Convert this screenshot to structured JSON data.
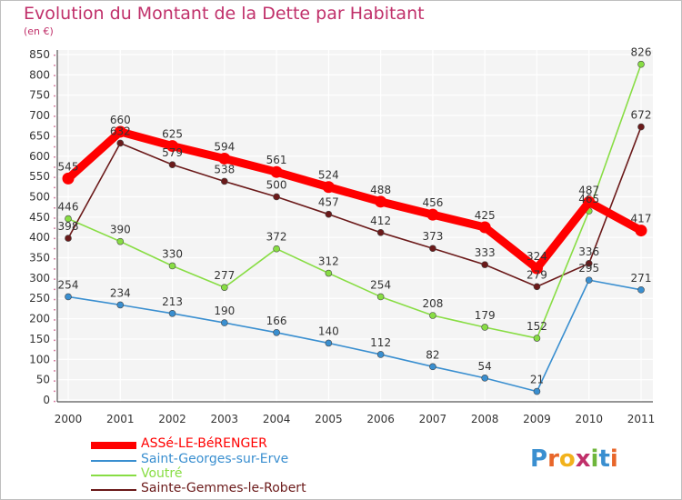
{
  "chart_data": {
    "type": "line",
    "title": "Evolution du Montant de la Dette par Habitant",
    "subtitle": "(en €)",
    "xlabel": "",
    "ylabel": "",
    "ylim": [
      0,
      850
    ],
    "yticks": [
      "0",
      "50",
      "100",
      "150",
      "200",
      "250",
      "300",
      "350",
      "400",
      "450",
      "500",
      "550",
      "600",
      "650",
      "700",
      "750",
      "800",
      "850"
    ],
    "x": [
      "2000",
      "2001",
      "2002",
      "2003",
      "2004",
      "2005",
      "2006",
      "2007",
      "2008",
      "2009",
      "2010",
      "2011"
    ],
    "grid": true,
    "legend_position": "bottom-left",
    "series": [
      {
        "name": "ASSé-LE-BéRENGER",
        "color": "#ff0000",
        "values": [
          545,
          660,
          625,
          594,
          561,
          524,
          488,
          456,
          425,
          324,
          487,
          417
        ],
        "labels": [
          "545",
          "660",
          "625",
          "594",
          "561",
          "524",
          "488",
          "456",
          "425",
          "324",
          "487",
          "417"
        ]
      },
      {
        "name": "Saint-Georges-sur-Erve",
        "color": "#3a8fd0",
        "values": [
          254,
          234,
          213,
          190,
          166,
          140,
          112,
          82,
          54,
          21,
          295,
          271
        ],
        "labels": [
          "254",
          "234",
          "213",
          "190",
          "166",
          "140",
          "112",
          "82",
          "54",
          "21",
          "295",
          "271"
        ]
      },
      {
        "name": "Voutré",
        "color": "#88dd44",
        "values": [
          446,
          390,
          330,
          277,
          372,
          312,
          254,
          208,
          179,
          152,
          465,
          826
        ],
        "labels": [
          "446",
          "390",
          "330",
          "277",
          "372",
          "312",
          "254",
          "208",
          "179",
          "152",
          "465",
          "826"
        ]
      },
      {
        "name": "Sainte-Gemmes-le-Robert",
        "color": "#6b1a1a",
        "values": [
          398,
          632,
          579,
          538,
          500,
          457,
          412,
          373,
          333,
          279,
          336,
          672
        ],
        "labels": [
          "398",
          "632",
          "579",
          "538",
          "500",
          "457",
          "412",
          "373",
          "333",
          "279",
          "336",
          "672"
        ]
      }
    ]
  },
  "logo": {
    "text": "Proxiti",
    "colors": [
      "#3a8fd0",
      "#e8662a",
      "#f2b21c",
      "#c0306a",
      "#6fb63c",
      "#3a8fd0",
      "#e8662a"
    ]
  }
}
